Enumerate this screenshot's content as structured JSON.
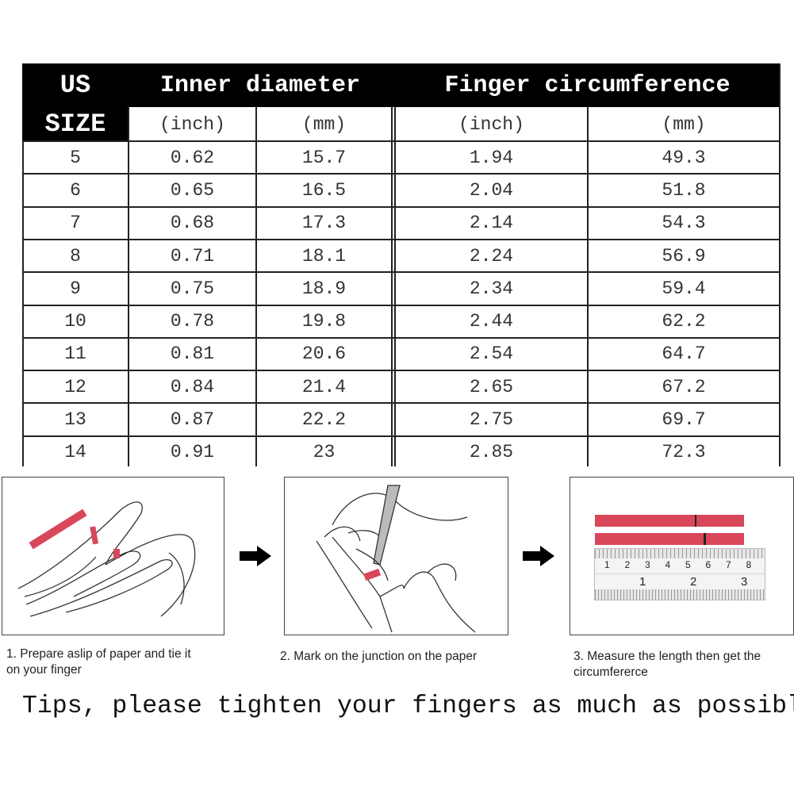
{
  "table": {
    "headers": {
      "us": "US",
      "size": "SIZE",
      "inner": "Inner diameter",
      "finger": "Finger circumference",
      "inch": "(inch)",
      "mm": "(mm)"
    },
    "rows": [
      [
        "5",
        "0.62",
        "15.7",
        "1.94",
        "49.3"
      ],
      [
        "6",
        "0.65",
        "16.5",
        "2.04",
        "51.8"
      ],
      [
        "7",
        "0.68",
        "17.3",
        "2.14",
        "54.3"
      ],
      [
        "8",
        "0.71",
        "18.1",
        "2.24",
        "56.9"
      ],
      [
        "9",
        "0.75",
        "18.9",
        "2.34",
        "59.4"
      ],
      [
        "10",
        "0.78",
        "19.8",
        "2.44",
        "62.2"
      ],
      [
        "11",
        "0.81",
        "20.6",
        "2.54",
        "64.7"
      ],
      [
        "12",
        "0.84",
        "21.4",
        "2.65",
        "67.2"
      ],
      [
        "13",
        "0.87",
        "22.2",
        "2.75",
        "69.7"
      ],
      [
        "14",
        "0.91",
        "23",
        "2.85",
        "72.3"
      ]
    ]
  },
  "steps": [
    {
      "caption_1": "1. Prepare aslip of paper and tie it",
      "caption_2": "on your finger"
    },
    {
      "caption_1": "2. Mark on the junction on the paper",
      "caption_2": ""
    },
    {
      "caption_1": "3. Measure the length then get the",
      "caption_2": "circumfererce"
    }
  ],
  "ruler": {
    "cm": [
      "1",
      "2",
      "3",
      "4",
      "5",
      "6",
      "7",
      "8"
    ],
    "inch": [
      "1",
      "2",
      "3"
    ]
  },
  "tips": "Tips, please tighten your fingers as much as possible",
  "colors": {
    "paper_strip": "#d9475a",
    "header": "#000000"
  }
}
